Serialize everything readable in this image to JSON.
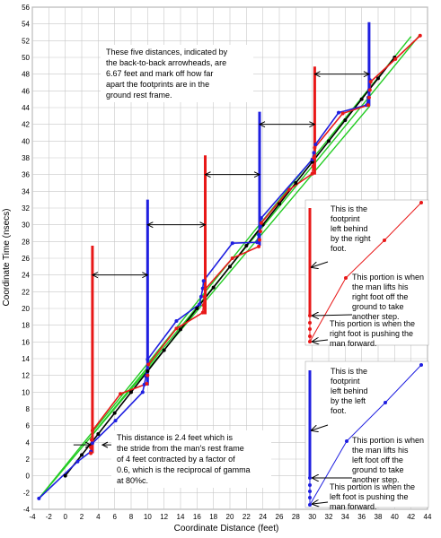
{
  "chart_data": {
    "type": "line",
    "title": "",
    "xlabel": "Coordinate Distance (feet)",
    "ylabel": "Coordinate Time (nsecs)",
    "xlim": [
      -4,
      44
    ],
    "ylim": [
      -4,
      56
    ],
    "xticks": [
      -4,
      -2,
      0,
      2,
      4,
      6,
      8,
      10,
      12,
      14,
      16,
      18,
      20,
      22,
      24,
      26,
      28,
      30,
      32,
      34,
      36,
      38,
      40,
      42,
      44
    ],
    "yticks": [
      -4,
      -2,
      0,
      2,
      4,
      6,
      8,
      10,
      12,
      14,
      16,
      18,
      20,
      22,
      24,
      26,
      28,
      30,
      32,
      34,
      36,
      38,
      40,
      42,
      44,
      46,
      48,
      50,
      52,
      54,
      56
    ],
    "grid": true,
    "series": [
      {
        "color": "#22cc22",
        "points": [
          [
            -3.2,
            -2.7
          ],
          [
            37,
            44.2
          ]
        ]
      },
      {
        "color": "#22cc22",
        "points": [
          [
            -3.2,
            -2.7
          ],
          [
            42,
            52.5
          ]
        ]
      },
      {
        "color": "#22cc22",
        "points": [
          [
            3.2,
            4.8
          ],
          [
            43,
            52.6
          ]
        ]
      },
      {
        "color": "#000000",
        "markers": true,
        "points": [
          [
            0,
            0
          ],
          [
            2,
            2.5
          ],
          [
            4,
            5
          ],
          [
            6,
            7.5
          ],
          [
            8,
            10
          ],
          [
            10,
            12.5
          ],
          [
            12,
            15
          ],
          [
            14,
            17.5
          ],
          [
            16,
            20
          ],
          [
            18,
            22.5
          ],
          [
            20,
            25
          ],
          [
            22,
            27.5
          ],
          [
            24,
            30
          ],
          [
            26,
            32.5
          ],
          [
            28,
            35
          ],
          [
            30,
            37.5
          ],
          [
            32,
            40
          ],
          [
            34,
            42.5
          ],
          [
            36,
            45
          ],
          [
            38,
            47.5
          ],
          [
            40,
            50
          ]
        ]
      },
      {
        "color": "#1f1fe0",
        "markers": true,
        "points": [
          [
            -3.2,
            -2.7
          ],
          [
            1.5,
            1.7
          ],
          [
            3.1,
            2.9
          ],
          [
            3.3,
            3.9
          ],
          [
            6.1,
            6.6
          ],
          [
            9.4,
            10.0
          ],
          [
            9.6,
            10.9
          ],
          [
            9.8,
            11.9
          ],
          [
            10.0,
            13.9
          ],
          [
            13.5,
            18.5
          ],
          [
            16.3,
            20.5
          ],
          [
            16.5,
            21.4
          ],
          [
            16.7,
            22.4
          ],
          [
            16.8,
            23.3
          ],
          [
            20.3,
            27.8
          ],
          [
            23.3,
            27.9
          ],
          [
            23.5,
            28.8
          ],
          [
            23.7,
            29.8
          ],
          [
            23.8,
            30.8
          ],
          [
            30.0,
            37.8
          ],
          [
            30.2,
            38.6
          ],
          [
            30.4,
            39.6
          ],
          [
            33.2,
            43.4
          ],
          [
            36.6,
            44.3
          ],
          [
            36.8,
            45.2
          ],
          [
            36.9,
            46.1
          ],
          [
            37.0,
            47.3
          ]
        ]
      },
      {
        "color": "#e81818",
        "markers": true,
        "points": [
          [
            3.1,
            2.7
          ],
          [
            3.1,
            3.4
          ],
          [
            3.2,
            4.3
          ],
          [
            3.3,
            5.4
          ],
          [
            6.7,
            9.8
          ],
          [
            9.9,
            11.0
          ],
          [
            10.0,
            12.0
          ],
          [
            10.1,
            13.3
          ],
          [
            13.5,
            17.6
          ],
          [
            16.7,
            19.5
          ],
          [
            16.8,
            20.4
          ],
          [
            16.9,
            21.4
          ],
          [
            17.0,
            22.3
          ],
          [
            20.3,
            26.0
          ],
          [
            23.5,
            27.4
          ],
          [
            23.6,
            28.2
          ],
          [
            23.7,
            29.2
          ],
          [
            23.8,
            30.2
          ],
          [
            27.2,
            34.2
          ],
          [
            30.0,
            36.1
          ],
          [
            30.1,
            37.0
          ],
          [
            30.2,
            38.0
          ],
          [
            30.3,
            39.2
          ],
          [
            33.7,
            43.3
          ],
          [
            36.8,
            44.3
          ],
          [
            36.9,
            45.2
          ],
          [
            37.0,
            46.1
          ],
          [
            37.1,
            47.1
          ],
          [
            40.1,
            49.8
          ],
          [
            43.1,
            52.6
          ]
        ]
      }
    ],
    "verticals": [
      {
        "color": "#e81818",
        "x": 3.3,
        "y0": 2.7,
        "y1": 27.5
      },
      {
        "color": "#1f1fe0",
        "x": 10.0,
        "y0": 10.8,
        "y1": 33.0
      },
      {
        "color": "#e81818",
        "x": 17.0,
        "y0": 19.3,
        "y1": 38.3
      },
      {
        "color": "#1f1fe0",
        "x": 23.6,
        "y0": 27.5,
        "y1": 43.5
      },
      {
        "color": "#e81818",
        "x": 30.3,
        "y0": 36.0,
        "y1": 48.9
      },
      {
        "color": "#1f1fe0",
        "x": 36.9,
        "y0": 44.2,
        "y1": 54.2
      }
    ],
    "distance_arrows": [
      {
        "y": 24,
        "x0": 3.3,
        "x1": 10.0
      },
      {
        "y": 30,
        "x0": 10.0,
        "x1": 17.0
      },
      {
        "y": 36,
        "x0": 17.0,
        "x1": 23.6
      },
      {
        "y": 42,
        "x0": 23.6,
        "x1": 30.3
      },
      {
        "y": 48,
        "x0": 30.3,
        "x1": 36.9
      }
    ],
    "annotations": [
      "These five distances, indicated by the back-to-back arrowheads, are 6.67 feet and mark off how far apart the footprints are in the ground rest frame.",
      "This distance is 2.4 feet which is the stride from the man's rest frame of 4 feet contracted by a factor of 0.6, which is the reciprocal of gamma at 80%c."
    ],
    "legends": [
      {
        "color": "#e81818",
        "labels": [
          "This is the footprint left behind by the right foot.",
          "This portion is when the man lifts his right foot off the ground to take another step.",
          "This portion is when the right foot is pushing the man forward."
        ]
      },
      {
        "color": "#1f1fe0",
        "labels": [
          "This is the footprint left behind by the left foot.",
          "This portion is when the man lifts his left foot off the ground to take another step.",
          "This portion is when the left foot is pushing the man forward."
        ]
      }
    ]
  }
}
